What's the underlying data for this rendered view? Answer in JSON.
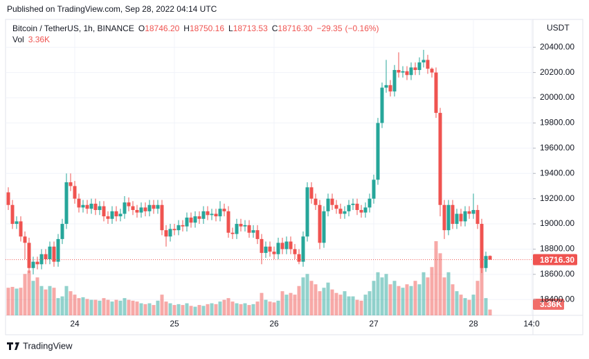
{
  "chart_data": {
    "type": "candlestick",
    "header": "Published on TradingView.com, Sep 28, 2022 04:14 UTC",
    "title": "Bitcoin / TetherUS, 1h, BINANCE",
    "legend": {
      "keys": [
        "O",
        "H",
        "L",
        "C"
      ],
      "value_labels": [
        "18746.20",
        "18750.16",
        "18713.53",
        "18716.30"
      ]
    },
    "change": {
      "value": -29.35,
      "label": "−29.35"
    },
    "change_pct": {
      "value": -0.16,
      "label": "(−0.16%)"
    },
    "price_unit": "USDT",
    "last_price_label": "18716.30",
    "footer": "TradingView",
    "up_color": "#26a69a",
    "down_color": "#ef5350",
    "grid": true,
    "ylim": [
      18275,
      20610
    ],
    "yticks": [
      {
        "value": 18400,
        "label": "18400.00"
      },
      {
        "value": 18600,
        "label": "18600.00"
      },
      {
        "value": 18800,
        "label": "18800.00"
      },
      {
        "value": 19000,
        "label": "19000.00"
      },
      {
        "value": 19200,
        "label": "19200.00"
      },
      {
        "value": 19400,
        "label": "19400.00"
      },
      {
        "value": 19600,
        "label": "19600.00"
      },
      {
        "value": 19800,
        "label": "19800.00"
      },
      {
        "value": 20000,
        "label": "20000.00"
      },
      {
        "value": 20200,
        "label": "20200.00"
      },
      {
        "value": 20400,
        "label": "20400.00"
      }
    ],
    "categories": [
      null,
      null,
      null,
      null,
      null,
      null,
      null,
      null,
      null,
      null,
      null,
      null,
      null,
      null,
      null,
      null,
      "24",
      null,
      null,
      null,
      null,
      null,
      null,
      null,
      null,
      null,
      null,
      null,
      null,
      null,
      null,
      null,
      null,
      null,
      null,
      null,
      null,
      null,
      null,
      null,
      "25",
      null,
      null,
      null,
      null,
      null,
      null,
      null,
      null,
      null,
      null,
      null,
      null,
      null,
      null,
      null,
      null,
      null,
      null,
      null,
      null,
      null,
      null,
      null,
      "26",
      null,
      null,
      null,
      null,
      null,
      null,
      null,
      null,
      null,
      null,
      null,
      null,
      null,
      null,
      null,
      null,
      null,
      null,
      null,
      null,
      null,
      null,
      null,
      "27",
      null,
      null,
      null,
      null,
      null,
      null,
      null,
      null,
      null,
      null,
      null,
      null,
      null,
      null,
      null,
      null,
      null,
      null,
      null,
      null,
      null,
      null,
      null,
      "28",
      null,
      null,
      null,
      null,
      null,
      null,
      null,
      null,
      null,
      null,
      null,
      null,
      null,
      "14:0"
    ],
    "open": [
      19250,
      19150,
      19000,
      19020,
      18900,
      18850,
      18650,
      18700,
      18680,
      18760,
      18720,
      18820,
      18700,
      18880,
      19000,
      19330,
      19300,
      19200,
      19130,
      19150,
      19120,
      19160,
      19110,
      19140,
      19060,
      19040,
      19100,
      19060,
      19080,
      19170,
      19140,
      19110,
      19090,
      19130,
      19100,
      19150,
      19120,
      19150,
      18950,
      18900,
      18960,
      18950,
      18990,
      18980,
      19050,
      19010,
      19060,
      19040,
      19100,
      19070,
      19080,
      19060,
      19120,
      19100,
      18930,
      18920,
      19000,
      18980,
      18990,
      18930,
      18950,
      18880,
      18770,
      18820,
      18780,
      18760,
      18850,
      18800,
      18860,
      18800,
      18760,
      18700,
      18900,
      19290,
      19200,
      19150,
      18850,
      19100,
      19200,
      19150,
      19120,
      19080,
      19100,
      19150,
      19160,
      19110,
      19090,
      19130,
      19200,
      19350,
      19800,
      20080,
      20100,
      20050,
      20220,
      20200,
      20210,
      20180,
      20240,
      20220,
      20280,
      20300,
      20230,
      20200,
      19880,
      19150,
      18950,
      19150,
      19000,
      19080,
      19020,
      19100,
      19080,
      19110,
      19000,
      18650,
      18746.2,
      null,
      null,
      null,
      null,
      null,
      null,
      null,
      null,
      null,
      null
    ],
    "high": [
      19290,
      19190,
      19060,
      19060,
      18940,
      18890,
      18740,
      18740,
      18800,
      18800,
      18860,
      18860,
      18920,
      19040,
      19400,
      19400,
      19340,
      19240,
      19190,
      19190,
      19200,
      19200,
      19180,
      19180,
      19100,
      19140,
      19140,
      19120,
      19220,
      19210,
      19180,
      19150,
      19170,
      19170,
      19190,
      19190,
      19190,
      19190,
      18990,
      19000,
      19000,
      19030,
      19030,
      19090,
      19090,
      19100,
      19100,
      19140,
      19140,
      19120,
      19120,
      19180,
      19160,
      19140,
      18970,
      19040,
      19040,
      19030,
      19030,
      18990,
      18990,
      18920,
      18860,
      18860,
      18820,
      18890,
      18890,
      18900,
      18900,
      18840,
      18800,
      18940,
      19330,
      19330,
      19240,
      19190,
      19140,
      19240,
      19240,
      19190,
      19160,
      19140,
      19190,
      19200,
      19200,
      19150,
      19170,
      19240,
      19390,
      19840,
      20120,
      20300,
      20140,
      20260,
      20360,
      20250,
      20250,
      20280,
      20280,
      20320,
      20380,
      20340,
      20240,
      20240,
      19920,
      19190,
      19190,
      19190,
      19120,
      19120,
      19140,
      19140,
      19240,
      19150,
      19040,
      18780,
      18750.16,
      null,
      null,
      null,
      null,
      null,
      null,
      null,
      null,
      null,
      null
    ],
    "low": [
      19110,
      18960,
      18960,
      18860,
      18720,
      18610,
      18600,
      18640,
      18640,
      18680,
      18680,
      18660,
      18660,
      18840,
      18960,
      19260,
      19160,
      19090,
      19090,
      19080,
      19080,
      19070,
      19070,
      19020,
      19000,
      19000,
      19020,
      19020,
      19040,
      19100,
      19070,
      19050,
      19050,
      19060,
      19060,
      19080,
      19080,
      18910,
      18820,
      18860,
      18910,
      18910,
      18940,
      18940,
      18970,
      18970,
      19000,
      19000,
      19030,
      19030,
      19020,
      19020,
      19060,
      18890,
      18880,
      18880,
      18940,
      18940,
      18890,
      18890,
      18840,
      18680,
      18730,
      18740,
      18720,
      18720,
      18760,
      18760,
      18760,
      18720,
      18680,
      18660,
      18860,
      19160,
      19110,
      18800,
      18810,
      19060,
      19110,
      19080,
      19040,
      19040,
      19060,
      19110,
      19070,
      19050,
      19050,
      19090,
      19160,
      19310,
      19760,
      20040,
      20010,
      20010,
      20160,
      20160,
      20140,
      20140,
      20180,
      20180,
      20240,
      20190,
      20160,
      19840,
      19060,
      18880,
      18910,
      18960,
      18960,
      18980,
      18980,
      19040,
      19040,
      18960,
      18610,
      18620,
      18713.53,
      null,
      null,
      null,
      null,
      null,
      null,
      null,
      null,
      null,
      null
    ],
    "close": [
      19150,
      19000,
      19020,
      18900,
      18850,
      18650,
      18700,
      18680,
      18760,
      18720,
      18820,
      18700,
      18880,
      19000,
      19330,
      19300,
      19200,
      19130,
      19150,
      19120,
      19160,
      19110,
      19140,
      19060,
      19040,
      19100,
      19060,
      19080,
      19170,
      19140,
      19110,
      19090,
      19130,
      19100,
      19150,
      19120,
      19150,
      18950,
      18900,
      18960,
      18950,
      18990,
      18980,
      19050,
      19010,
      19060,
      19040,
      19100,
      19070,
      19080,
      19060,
      19120,
      19100,
      18930,
      18920,
      19000,
      18980,
      18990,
      18930,
      18950,
      18880,
      18770,
      18820,
      18780,
      18760,
      18850,
      18800,
      18860,
      18800,
      18760,
      18700,
      18900,
      19290,
      19200,
      19150,
      18850,
      19100,
      19200,
      19150,
      19120,
      19080,
      19100,
      19150,
      19160,
      19110,
      19090,
      19130,
      19200,
      19350,
      19800,
      20080,
      20100,
      20050,
      20220,
      20200,
      20210,
      20180,
      20240,
      20220,
      20280,
      20300,
      20230,
      20200,
      19880,
      19150,
      18950,
      19150,
      19000,
      19080,
      19020,
      19100,
      19080,
      19110,
      19000,
      18650,
      18745.65,
      18716.3,
      null,
      null,
      null,
      null,
      null,
      null,
      null,
      null,
      null,
      null
    ],
    "volume": {
      "name": "Vol",
      "last_label": "3.36K",
      "values": [
        16000,
        16500,
        15500,
        16000,
        24000,
        26000,
        20000,
        22000,
        17000,
        15000,
        17000,
        16000,
        10000,
        11000,
        17000,
        14000,
        12000,
        10000,
        10500,
        9500,
        9000,
        9000,
        8500,
        10000,
        9000,
        8000,
        9000,
        8500,
        10000,
        9000,
        8500,
        8000,
        7000,
        6500,
        7000,
        6000,
        8500,
        12000,
        8000,
        7000,
        6000,
        6500,
        6000,
        7000,
        5500,
        5000,
        6000,
        5500,
        6500,
        7000,
        6500,
        8000,
        9000,
        10000,
        8000,
        7000,
        6500,
        7000,
        6000,
        6500,
        8000,
        13000,
        9000,
        8000,
        7500,
        8500,
        14000,
        12000,
        13000,
        12000,
        17000,
        22000,
        24000,
        20000,
        18000,
        14000,
        16000,
        19000,
        15000,
        13000,
        12000,
        14000,
        11000,
        11000,
        9000,
        8500,
        12000,
        14000,
        20000,
        25000,
        22000,
        24000,
        18000,
        20000,
        17000,
        16000,
        18000,
        17000,
        20000,
        18000,
        25000,
        22000,
        28000,
        43000,
        36000,
        22000,
        25000,
        18000,
        14000,
        12000,
        10000,
        9000,
        12000,
        20000,
        40000,
        10000,
        3360,
        null,
        null,
        null,
        null,
        null,
        null,
        null,
        null,
        null,
        null
      ]
    }
  }
}
